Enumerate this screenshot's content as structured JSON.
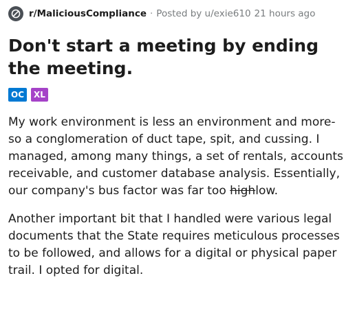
{
  "post": {
    "subreddit": "r/MaliciousCompliance",
    "separator": "·",
    "posted_by": "Posted by u/exie610",
    "time_ago": "21 hours ago",
    "title": "Don't start a meeting by ending the meeting.",
    "flairs": [
      {
        "label": "OC",
        "color": "#0079d3"
      },
      {
        "label": "XL",
        "color": "#a542c8"
      }
    ],
    "paragraph1": {
      "text": "My work environment is less an environment and more-so a conglomeration of duct tape, spit, and cussing. I managed, among many things, a set of rentals, accounts receivable, and customer database analysis. Essentially, our company's bus factor was far too ",
      "struck": "high",
      "after": "low."
    },
    "paragraph2": "Another important bit that I handled were various legal documents that the State requires meticulous processes to be followed, and allows for a digital or physical paper trail. I opted for digital."
  },
  "icons": {
    "subreddit_icon": "subreddit-avatar-icon"
  },
  "colors": {
    "meta_gray": "#787c7e",
    "text": "#1c1c1c",
    "oc_flair": "#0079d3",
    "xl_flair": "#a542c8"
  }
}
